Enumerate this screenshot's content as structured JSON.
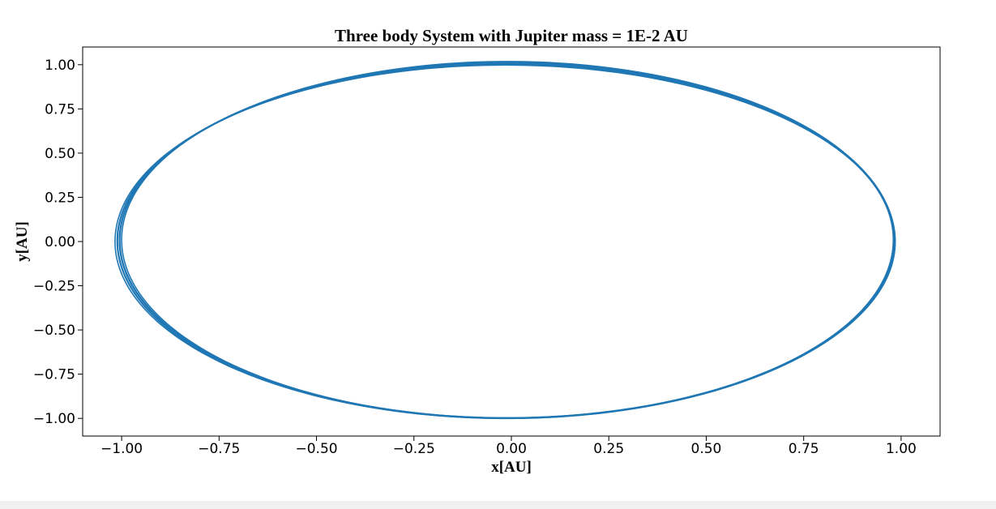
{
  "chart_data": {
    "type": "line",
    "title": "Three body System with Jupiter mass = 1E-2 AU",
    "xlabel": "x[AU]",
    "ylabel": "y[AU]",
    "xlim": [
      -1.1,
      1.1
    ],
    "ylim": [
      -1.1,
      1.1
    ],
    "x_ticks": [
      -1.0,
      -0.75,
      -0.5,
      -0.25,
      0.0,
      0.25,
      0.5,
      0.75,
      1.0
    ],
    "x_tick_labels": [
      "−1.00",
      "−0.75",
      "−0.50",
      "−0.25",
      "0.00",
      "0.25",
      "0.50",
      "0.75",
      "1.00"
    ],
    "y_ticks": [
      1.0,
      0.75,
      0.5,
      0.25,
      0.0,
      -0.25,
      -0.5,
      -0.75,
      -1.0
    ],
    "y_tick_labels": [
      "1.00",
      "0.75",
      "0.50",
      "0.25",
      "0.00",
      "−0.25",
      "−0.50",
      "−0.75",
      "−1.00"
    ],
    "grid": false,
    "legend": false,
    "series": [
      {
        "color": "#1f77b4",
        "shape": "near-circular orbit (closed loop), radius ~1.0 AU centered near origin",
        "x": [
          1.0,
          0.707,
          0.0,
          -0.707,
          -1.0,
          -0.707,
          0.0,
          0.707,
          1.0
        ],
        "y": [
          0.0,
          0.707,
          1.0,
          0.707,
          0.0,
          -0.707,
          -1.0,
          -0.707,
          0.0
        ]
      }
    ]
  }
}
